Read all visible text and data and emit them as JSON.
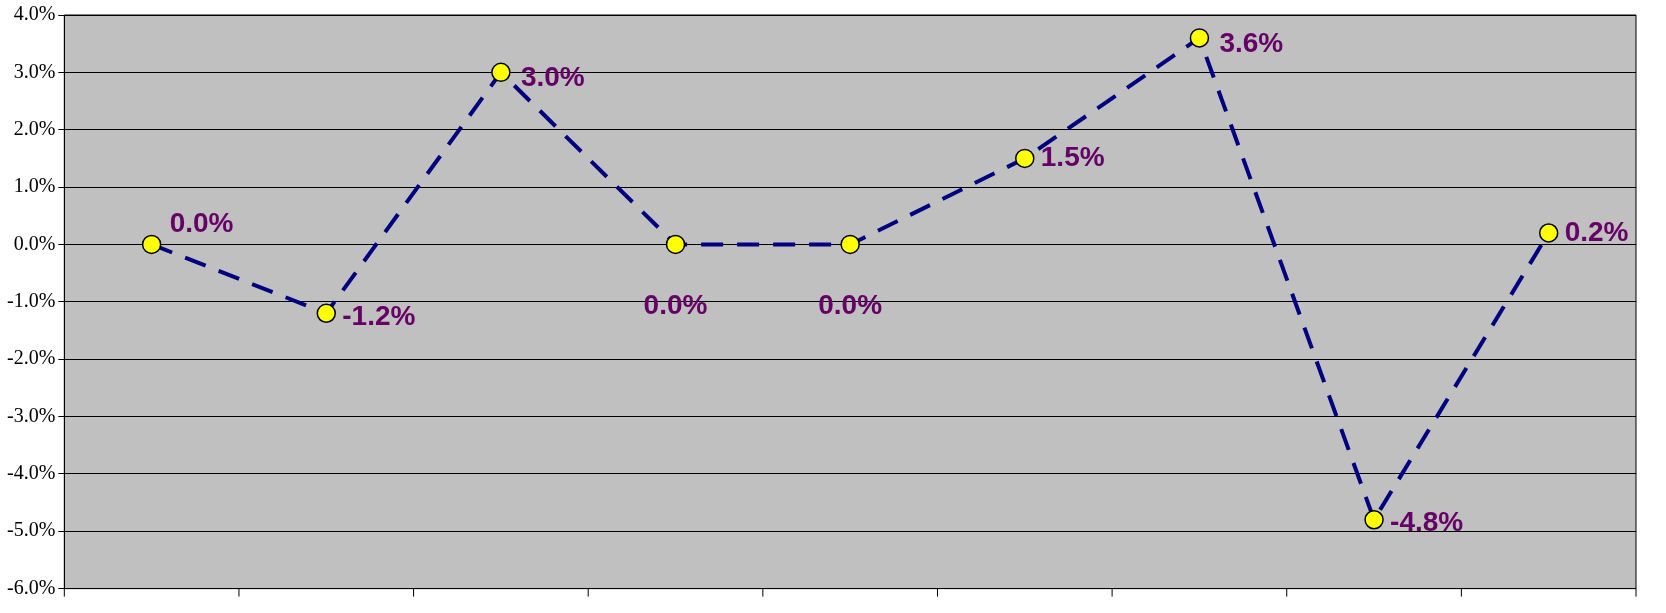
{
  "chart_data": {
    "type": "line",
    "categories": [
      null,
      null,
      null,
      null,
      null,
      null,
      null,
      null,
      null
    ],
    "series": [
      {
        "color": "#000080",
        "values": [
          0.0,
          -1.2,
          3.0,
          0.0,
          0.0,
          1.5,
          3.6,
          -4.8,
          0.2
        ],
        "value_labels": [
          "0.0%",
          "-1.2%",
          "3.0%",
          "0.0%",
          "0.0%",
          "1.5%",
          "3.6%",
          "-4.8%",
          "0.2%"
        ]
      }
    ],
    "ylim": [
      -6,
      4
    ],
    "yticks": [
      {
        "value": -6,
        "label": "-6.0%"
      },
      {
        "value": -5,
        "label": "-5.0%"
      },
      {
        "value": -4,
        "label": "-4.0%"
      },
      {
        "value": -3,
        "label": "-3.0%"
      },
      {
        "value": -2,
        "label": "-2.0%"
      },
      {
        "value": -1,
        "label": "-1.0%"
      },
      {
        "value": 0,
        "label": "0.0%"
      },
      {
        "value": 1,
        "label": "1.0%"
      },
      {
        "value": 2,
        "label": "2.0%"
      },
      {
        "value": 3,
        "label": "3.0%"
      },
      {
        "value": 4,
        "label": "4.0%"
      }
    ],
    "grid": "y",
    "legend": false,
    "marker": "circle",
    "line_style": "dashed"
  }
}
